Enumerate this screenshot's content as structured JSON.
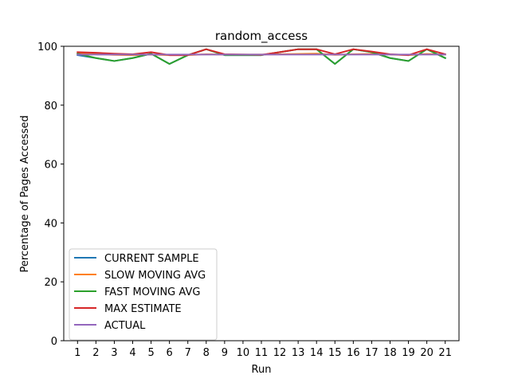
{
  "chart_data": {
    "type": "line",
    "title": "random_access",
    "xlabel": "Run",
    "ylabel": "Percentage of Pages Accessed",
    "x": [
      1,
      2,
      3,
      4,
      5,
      6,
      7,
      8,
      9,
      10,
      11,
      12,
      13,
      14,
      15,
      16,
      17,
      18,
      19,
      20,
      21
    ],
    "xlim": [
      0.25,
      21.75
    ],
    "ylim": [
      0,
      100
    ],
    "yticks": [
      0,
      20,
      40,
      60,
      80,
      100
    ],
    "grid": false,
    "legend_position": "lower-left",
    "series": [
      {
        "name": "CURRENT SAMPLE",
        "color": "#1f77b4",
        "values": [
          97,
          96,
          95,
          96,
          97.5,
          94,
          97,
          99,
          97,
          97,
          97,
          98,
          99,
          99,
          94,
          99,
          98,
          96,
          95,
          99,
          96
        ]
      },
      {
        "name": "SLOW MOVING AVG",
        "color": "#ff7f0e",
        "values": [
          97.5,
          97.3,
          97.1,
          97,
          97.2,
          97,
          97,
          97.3,
          97.2,
          97.2,
          97.2,
          97.3,
          97.4,
          97.5,
          97.1,
          97.3,
          97.4,
          97.2,
          97,
          97.4,
          97.2
        ]
      },
      {
        "name": "FAST MOVING AVG",
        "color": "#2ca02c",
        "values": [
          97.5,
          96,
          95,
          96,
          97.5,
          94,
          97,
          99,
          97,
          97,
          97,
          98,
          99,
          99,
          94,
          99,
          98,
          96,
          95,
          99,
          96
        ]
      },
      {
        "name": "MAX ESTIMATE",
        "color": "#d62728",
        "values": [
          98,
          97.8,
          97.5,
          97.3,
          98,
          97,
          97,
          99,
          97.3,
          97.2,
          97.1,
          98,
          99,
          99,
          97.3,
          99,
          98.2,
          97.3,
          97,
          99,
          97.3
        ]
      },
      {
        "name": "ACTUAL",
        "color": "#9467bd",
        "values": [
          97.2,
          97.2,
          97.2,
          97.2,
          97.2,
          97.2,
          97.2,
          97.2,
          97.2,
          97.2,
          97.2,
          97.2,
          97.2,
          97.2,
          97.2,
          97.2,
          97.2,
          97.2,
          97.2,
          97.2,
          97.2
        ]
      }
    ]
  }
}
